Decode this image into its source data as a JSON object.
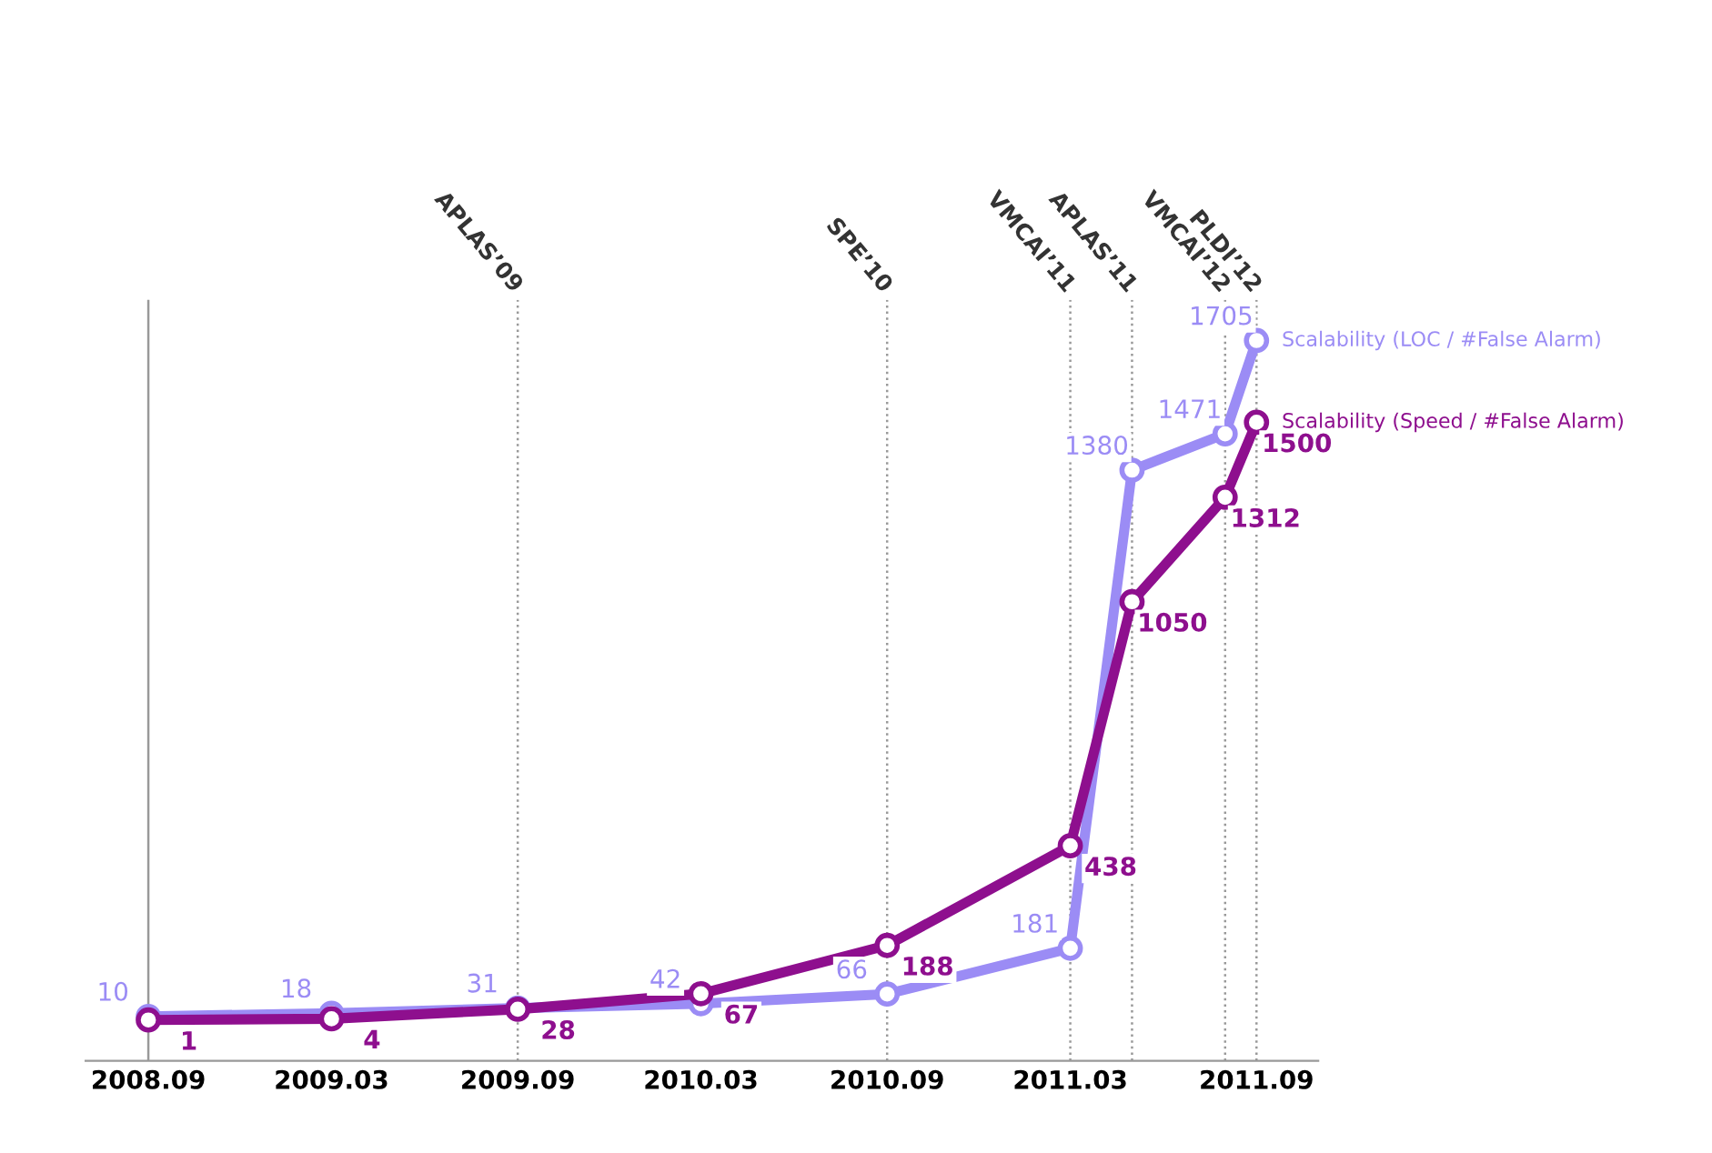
{
  "chart_data": {
    "type": "line",
    "x": [
      "2008-09",
      "2009-03",
      "2009-09",
      "2010-03",
      "2010-09",
      "2011-03",
      "2011-05",
      "2011-08",
      "2011-09"
    ],
    "series": [
      {
        "name": "Scalability (LOC / #False Alarm)",
        "color": "#9b8cf5",
        "values": [
          10,
          18,
          31,
          42,
          66,
          181,
          1380,
          1471,
          1705
        ]
      },
      {
        "name": "Scalability (Speed / #False Alarm)",
        "color": "#8e0f8e",
        "values": [
          1,
          4,
          28,
          67,
          188,
          438,
          1050,
          1312,
          1500
        ]
      }
    ],
    "data_labels": true,
    "marker": "circle",
    "line_style": "solid",
    "legend": false,
    "grid": false,
    "tick_labels": "x",
    "xlim": [
      "2008-07",
      "2011-11"
    ],
    "xticks": [
      {
        "value": "2008-09",
        "label": "2008.09"
      },
      {
        "value": "2009-03",
        "label": "2009.03"
      },
      {
        "value": "2009-09",
        "label": "2009.09"
      },
      {
        "value": "2010-03",
        "label": "2010.03"
      },
      {
        "value": "2010-09",
        "label": "2010.09"
      },
      {
        "value": "2011-03",
        "label": "2011.03"
      },
      {
        "value": "2011-09",
        "label": "2011.09"
      }
    ],
    "ref_lines": [
      {
        "axis": "x",
        "value": "2008-09",
        "label": null,
        "color": "#999999",
        "line_style": "solid"
      },
      {
        "axis": "x",
        "value": "2009-09",
        "label": "APLAS’09",
        "color": "#999999",
        "line_style": "dotted"
      },
      {
        "axis": "x",
        "value": "2010-09",
        "label": "SPE’10",
        "color": "#999999",
        "line_style": "dotted"
      },
      {
        "axis": "x",
        "value": "2011-03",
        "label": "VMCAI’11",
        "color": "#999999",
        "line_style": "dotted"
      },
      {
        "axis": "x",
        "value": "2011-05",
        "label": "APLAS’11",
        "color": "#999999",
        "line_style": "dotted"
      },
      {
        "axis": "x",
        "value": "2011-08",
        "label": "VMCAI’12",
        "color": "#999999",
        "line_style": "dotted"
      },
      {
        "axis": "x",
        "value": "2011-09",
        "label": "PLDI’12",
        "color": "#999999",
        "line_style": "dotted"
      }
    ]
  }
}
